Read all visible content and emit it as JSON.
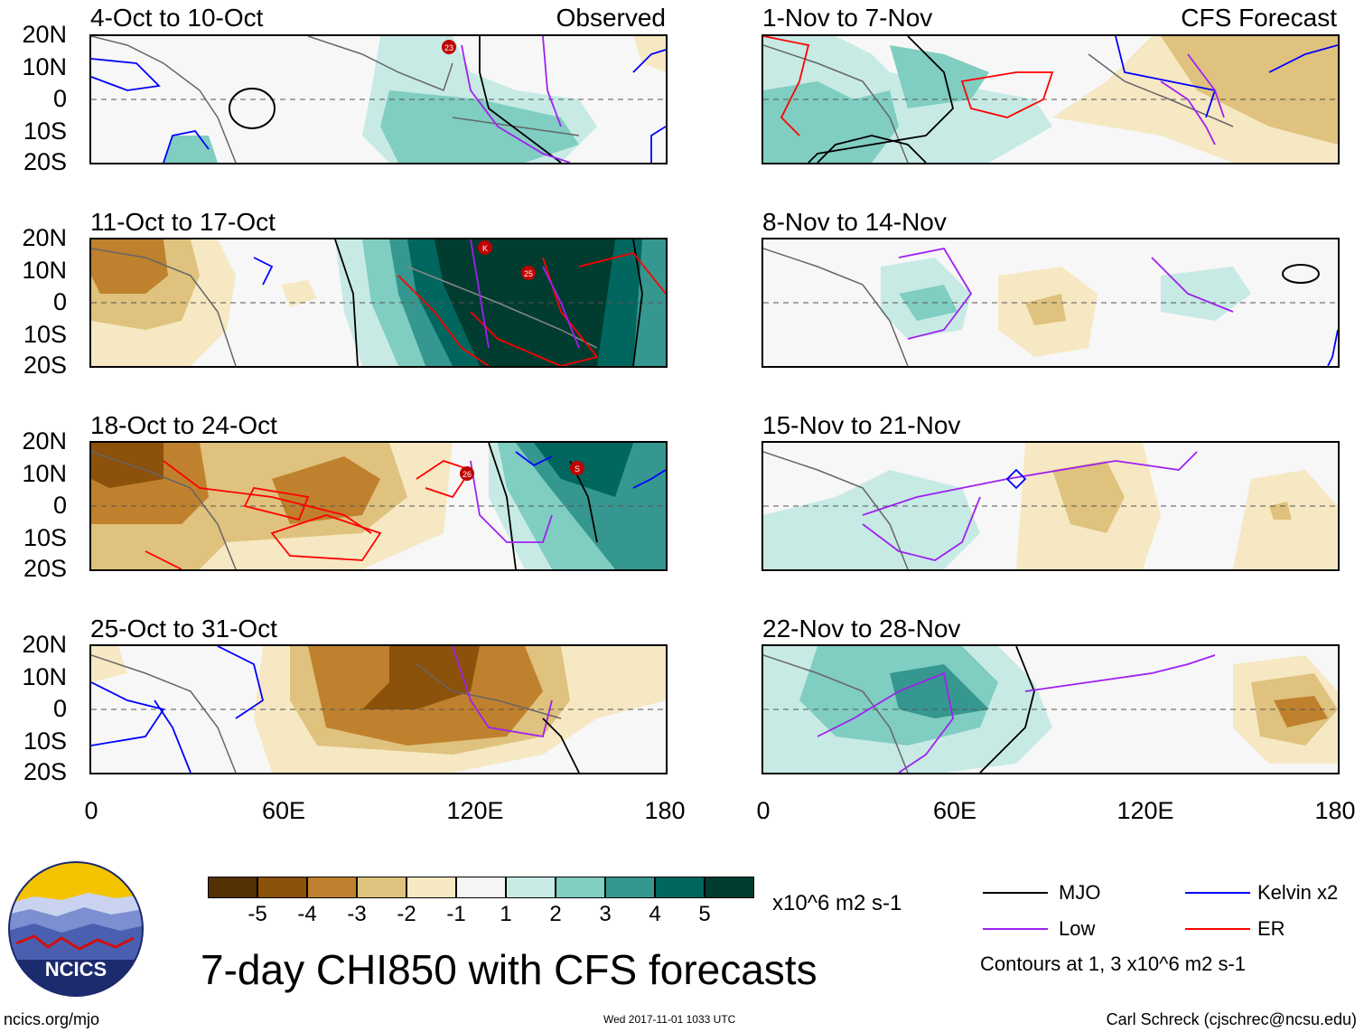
{
  "lat_labels": [
    "20N",
    "10N",
    "0",
    "10S",
    "20S"
  ],
  "lon_labels": [
    "0",
    "60E",
    "120E",
    "180"
  ],
  "observed_tag": "Observed",
  "forecast_tag": "CFS Forecast",
  "left_panels": [
    {
      "title": "4-Oct to 10-Oct"
    },
    {
      "title": "11-Oct to 17-Oct"
    },
    {
      "title": "18-Oct to 24-Oct"
    },
    {
      "title": "25-Oct to 31-Oct"
    }
  ],
  "right_panels": [
    {
      "title": "1-Nov to 7-Nov"
    },
    {
      "title": "8-Nov to 14-Nov"
    },
    {
      "title": "15-Nov to 21-Nov"
    },
    {
      "title": "22-Nov to 28-Nov"
    }
  ],
  "storm_markers": [
    "23",
    "K",
    "25",
    "26",
    "S"
  ],
  "colorbar": {
    "colors": [
      "#543005",
      "#8c510a",
      "#bf812d",
      "#dfc27d",
      "#f6e8c3",
      "#f5f5f5",
      "#c7eae5",
      "#80cdc1",
      "#35978f",
      "#01665e",
      "#003c30"
    ],
    "labels": [
      "-5",
      "-4",
      "-3",
      "-2",
      "-1",
      "1",
      "2",
      "3",
      "4",
      "5"
    ],
    "units": "x10^6 m2 s-1"
  },
  "legend": {
    "mjo": "MJO",
    "kelvin": "Kelvin x2",
    "low": "Low",
    "er": "ER",
    "contours_note": "Contours at 1, 3 x10^6 m2 s-1",
    "colors": {
      "mjo": "#000000",
      "kelvin": "#0000ff",
      "low": "#a020f0",
      "er": "#ff0000"
    }
  },
  "logo_text": "NCICS",
  "main_title": "7-day CHI850 with CFS forecasts",
  "footer": {
    "left": "ncics.org/mjo",
    "center": "Wed 2017-11-01 1033 UTC",
    "right": "Carl Schreck (cjschrec@ncsu.edu)"
  }
}
